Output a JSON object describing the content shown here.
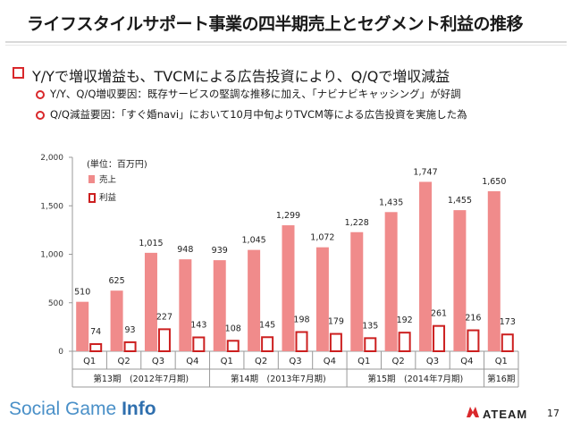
{
  "slide": {
    "title": "ライフスタイルサポート事業の四半期売上とセグメント利益の推移",
    "bullet": "Y/Yで増収増益も、TVCMによる広告投資により、Q/Qで増収減益",
    "sub_bullets": [
      "Y/Y、Q/Q増収要因：既存サービスの堅調な推移に加え、「ナビナビキャッシング」が好調",
      "Q/Q減益要因：「すぐ婚navi」において10月中旬よりTVCM等による広告投資を実施した為"
    ],
    "page_number": "17",
    "footer_logo_regular": "Social Game ",
    "footer_logo_bold": "Info",
    "company_logo": "ATEAM"
  },
  "chart_data": {
    "type": "bar",
    "unit_note": "(単位：百万円)",
    "categories": [
      "Q1",
      "Q2",
      "Q3",
      "Q4",
      "Q1",
      "Q2",
      "Q3",
      "Q4",
      "Q1",
      "Q2",
      "Q3",
      "Q4",
      "Q1"
    ],
    "period_groups": [
      {
        "label": "第13期　(2012年7月期)",
        "span": 4
      },
      {
        "label": "第14期　(2013年7月期)",
        "span": 4
      },
      {
        "label": "第15期　(2014年7月期)",
        "span": 4
      },
      {
        "label": "第16期",
        "span": 1
      }
    ],
    "series": [
      {
        "name": "売上",
        "values": [
          510,
          625,
          1015,
          948,
          939,
          1045,
          1299,
          1072,
          1228,
          1435,
          1747,
          1455,
          1650
        ],
        "color": "#f08b8b",
        "style": "filled"
      },
      {
        "name": "利益",
        "values": [
          74,
          93,
          227,
          143,
          108,
          145,
          198,
          179,
          135,
          192,
          261,
          216,
          173
        ],
        "color": "#cc1f1f",
        "style": "outline"
      }
    ],
    "ylim": [
      0,
      2000
    ],
    "yticks": [
      0,
      500,
      1000,
      1500,
      2000
    ],
    "ytick_labels": [
      "0",
      "500",
      "1,000",
      "1,500",
      "2,000"
    ],
    "legend_position": "top-left"
  }
}
